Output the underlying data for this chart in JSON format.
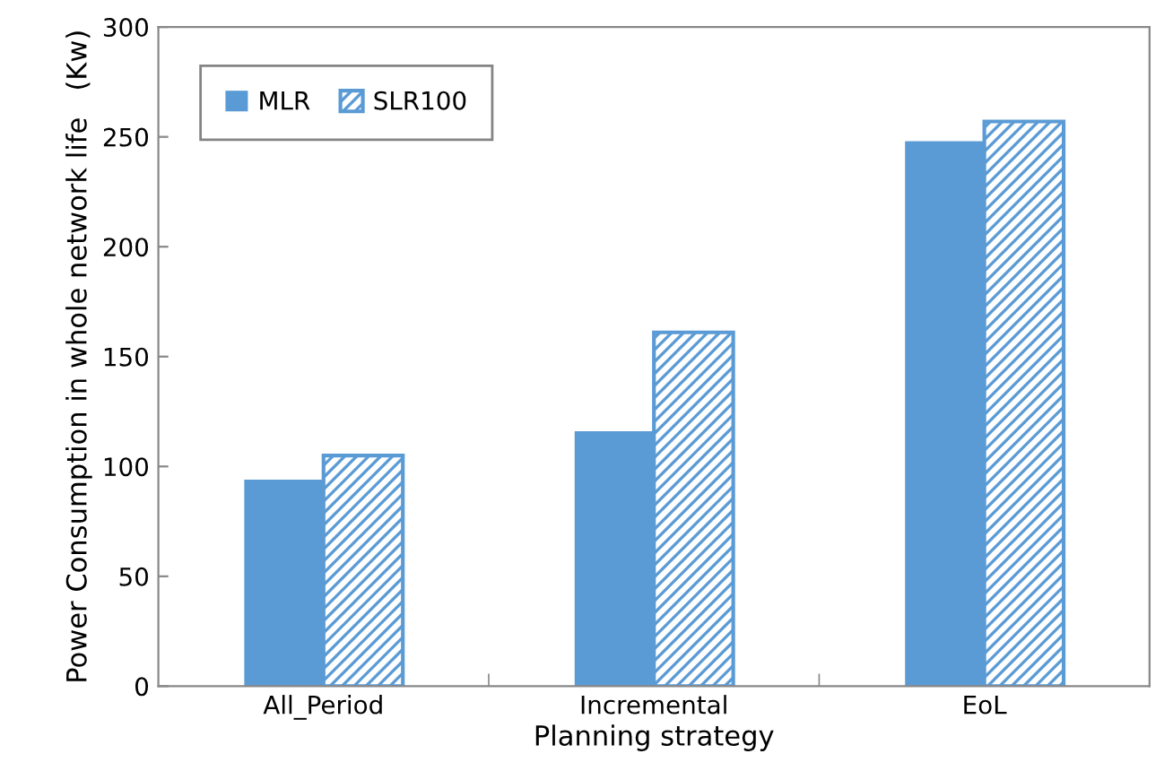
{
  "chart_data": {
    "type": "bar",
    "xlabel": "Planning strategy",
    "ylabel": "Power Consumption in whole network life   (Kw)",
    "categories": [
      "All_Period",
      "Incremental",
      "EoL"
    ],
    "series": [
      {
        "name": "MLR",
        "color": "#5b9bd5",
        "values": [
          94,
          116,
          248
        ]
      },
      {
        "name": "SLR100",
        "color": "#5b9bd5",
        "values": [
          105,
          161,
          257
        ]
      }
    ],
    "ylim": [
      0,
      300
    ],
    "yticks": [
      0,
      50,
      100,
      150,
      200,
      250,
      300
    ],
    "grid": false,
    "legend": "top left"
  }
}
